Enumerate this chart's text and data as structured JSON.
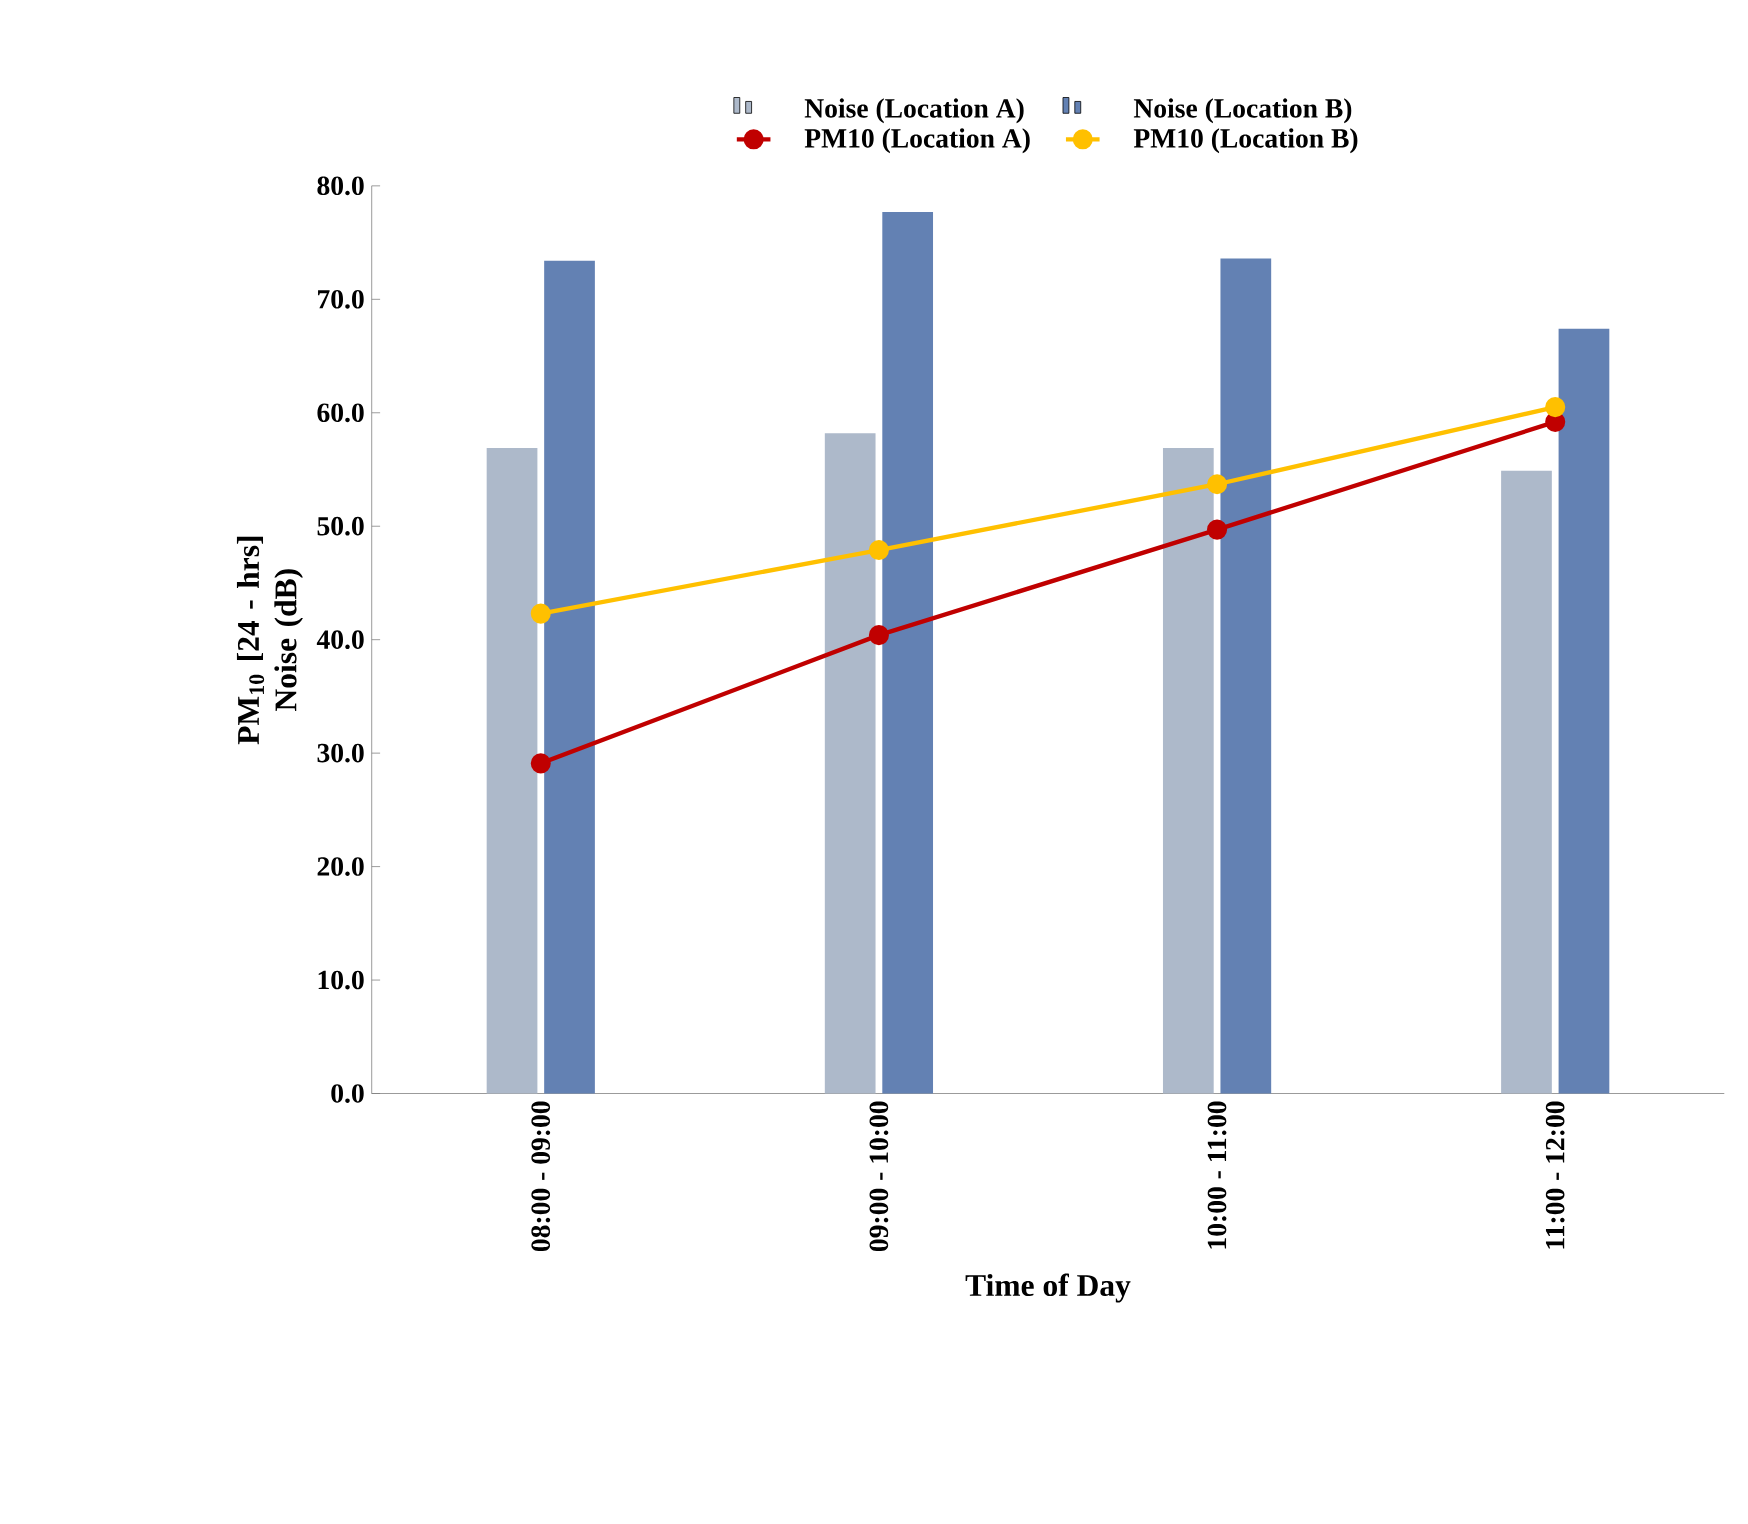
{
  "chart_data": {
    "type": "bar",
    "xlabel": "Time of Day",
    "ylabel": "PM$_{10}$ [24 - hrs] Noise (dB)",
    "categories": [
      "08:00 - 09:00",
      "09:00 - 10:00",
      "10:00 - 11:00",
      "11:00 - 12:00"
    ],
    "series": [
      {
        "name": "Noise (Location A)",
        "color": "#adb9ca",
        "values": [
          56.9,
          58.2,
          56.9,
          54.9
        ]
      },
      {
        "name": "Noise (Location B)",
        "color": "#6381b3",
        "values": [
          73.4,
          77.7,
          73.6,
          67.4
        ]
      },
      {
        "name": "PM10 (Location A)",
        "type": "line",
        "color": "#c00000",
        "values": [
          29.1,
          40.4,
          49.7,
          59.2
        ]
      },
      {
        "name": "PM10 (Location B)",
        "type": "line",
        "color": "#ffc000",
        "values": [
          42.3,
          47.9,
          53.7,
          60.5
        ]
      }
    ],
    "ylim": [
      0,
      80
    ],
    "yticks": [
      {
        "value": 0,
        "label": "0.0"
      },
      {
        "value": 10,
        "label": "10.0"
      },
      {
        "value": 20,
        "label": "20.0"
      },
      {
        "value": 30,
        "label": "30.0"
      },
      {
        "value": 40,
        "label": "40.0"
      },
      {
        "value": 50,
        "label": "50.0"
      },
      {
        "value": 60,
        "label": "60.0"
      },
      {
        "value": 70,
        "label": "70.0"
      },
      {
        "value": 80,
        "label": "80.0"
      }
    ],
    "grid": false,
    "legend": "top",
    "marker": "circle",
    "line_style": "solid"
  }
}
